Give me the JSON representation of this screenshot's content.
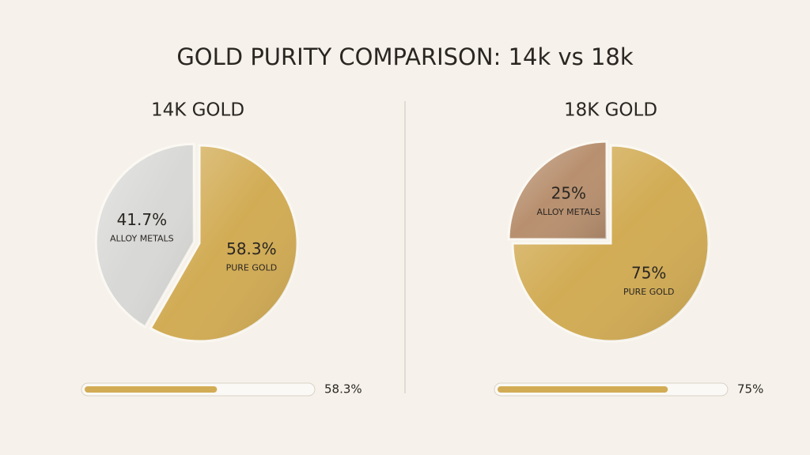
{
  "title": "GOLD PURITY COMPARISON: 14k vs 18k",
  "chart_data": [
    {
      "type": "pie",
      "title": "14K GOLD",
      "categories": [
        "PURE GOLD",
        "ALLOY METALS"
      ],
      "values": [
        58.3,
        41.7
      ],
      "value_labels": [
        "58.3%",
        "41.7%"
      ],
      "colors": [
        "#d2ac55",
        "#d8d8d6"
      ]
    },
    {
      "type": "pie",
      "title": "18K GOLD",
      "categories": [
        "PURE GOLD",
        "ALLOY METALS"
      ],
      "values": [
        75,
        25
      ],
      "value_labels": [
        "75%",
        "25%"
      ],
      "colors": [
        "#d2ac55",
        "#b8906f"
      ]
    }
  ]
}
